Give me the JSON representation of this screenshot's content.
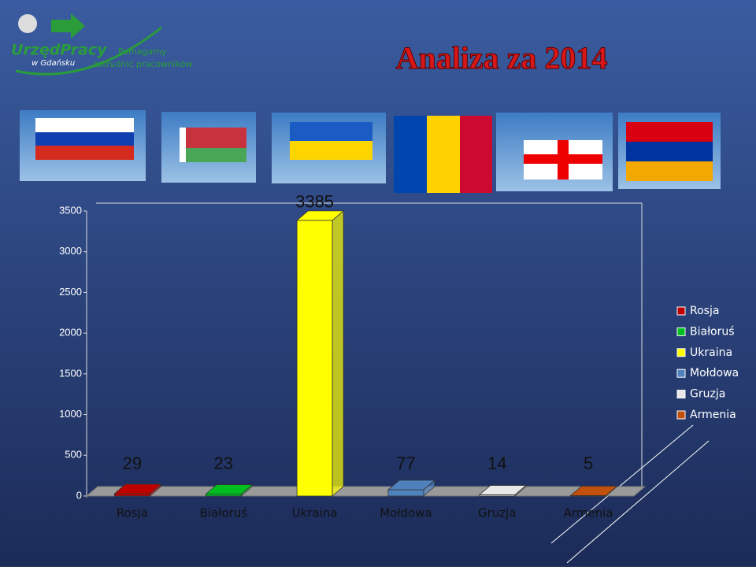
{
  "logo": {
    "name": "UrzędPracy",
    "city": "w Gdańsku",
    "slogan_1": "Pomagamy",
    "slogan_2": "zatrudnić pracowników"
  },
  "chart_data": {
    "type": "bar3d",
    "title": "Analiza za 2014",
    "categories": [
      "Rosja",
      "Białoruś",
      "Ukraina",
      "Mołdowa",
      "Gruzja",
      "Armenia"
    ],
    "values": [
      29,
      23,
      3385,
      77,
      14,
      5
    ],
    "colors": [
      "#c00000",
      "#00c020",
      "#ffff00",
      "#4f81bd",
      "#e8e8e8",
      "#c0500b"
    ],
    "ylim": [
      0,
      3500
    ],
    "yticks": [
      0,
      500,
      1000,
      1500,
      2000,
      2500,
      3000,
      3500
    ],
    "legend": "right"
  }
}
